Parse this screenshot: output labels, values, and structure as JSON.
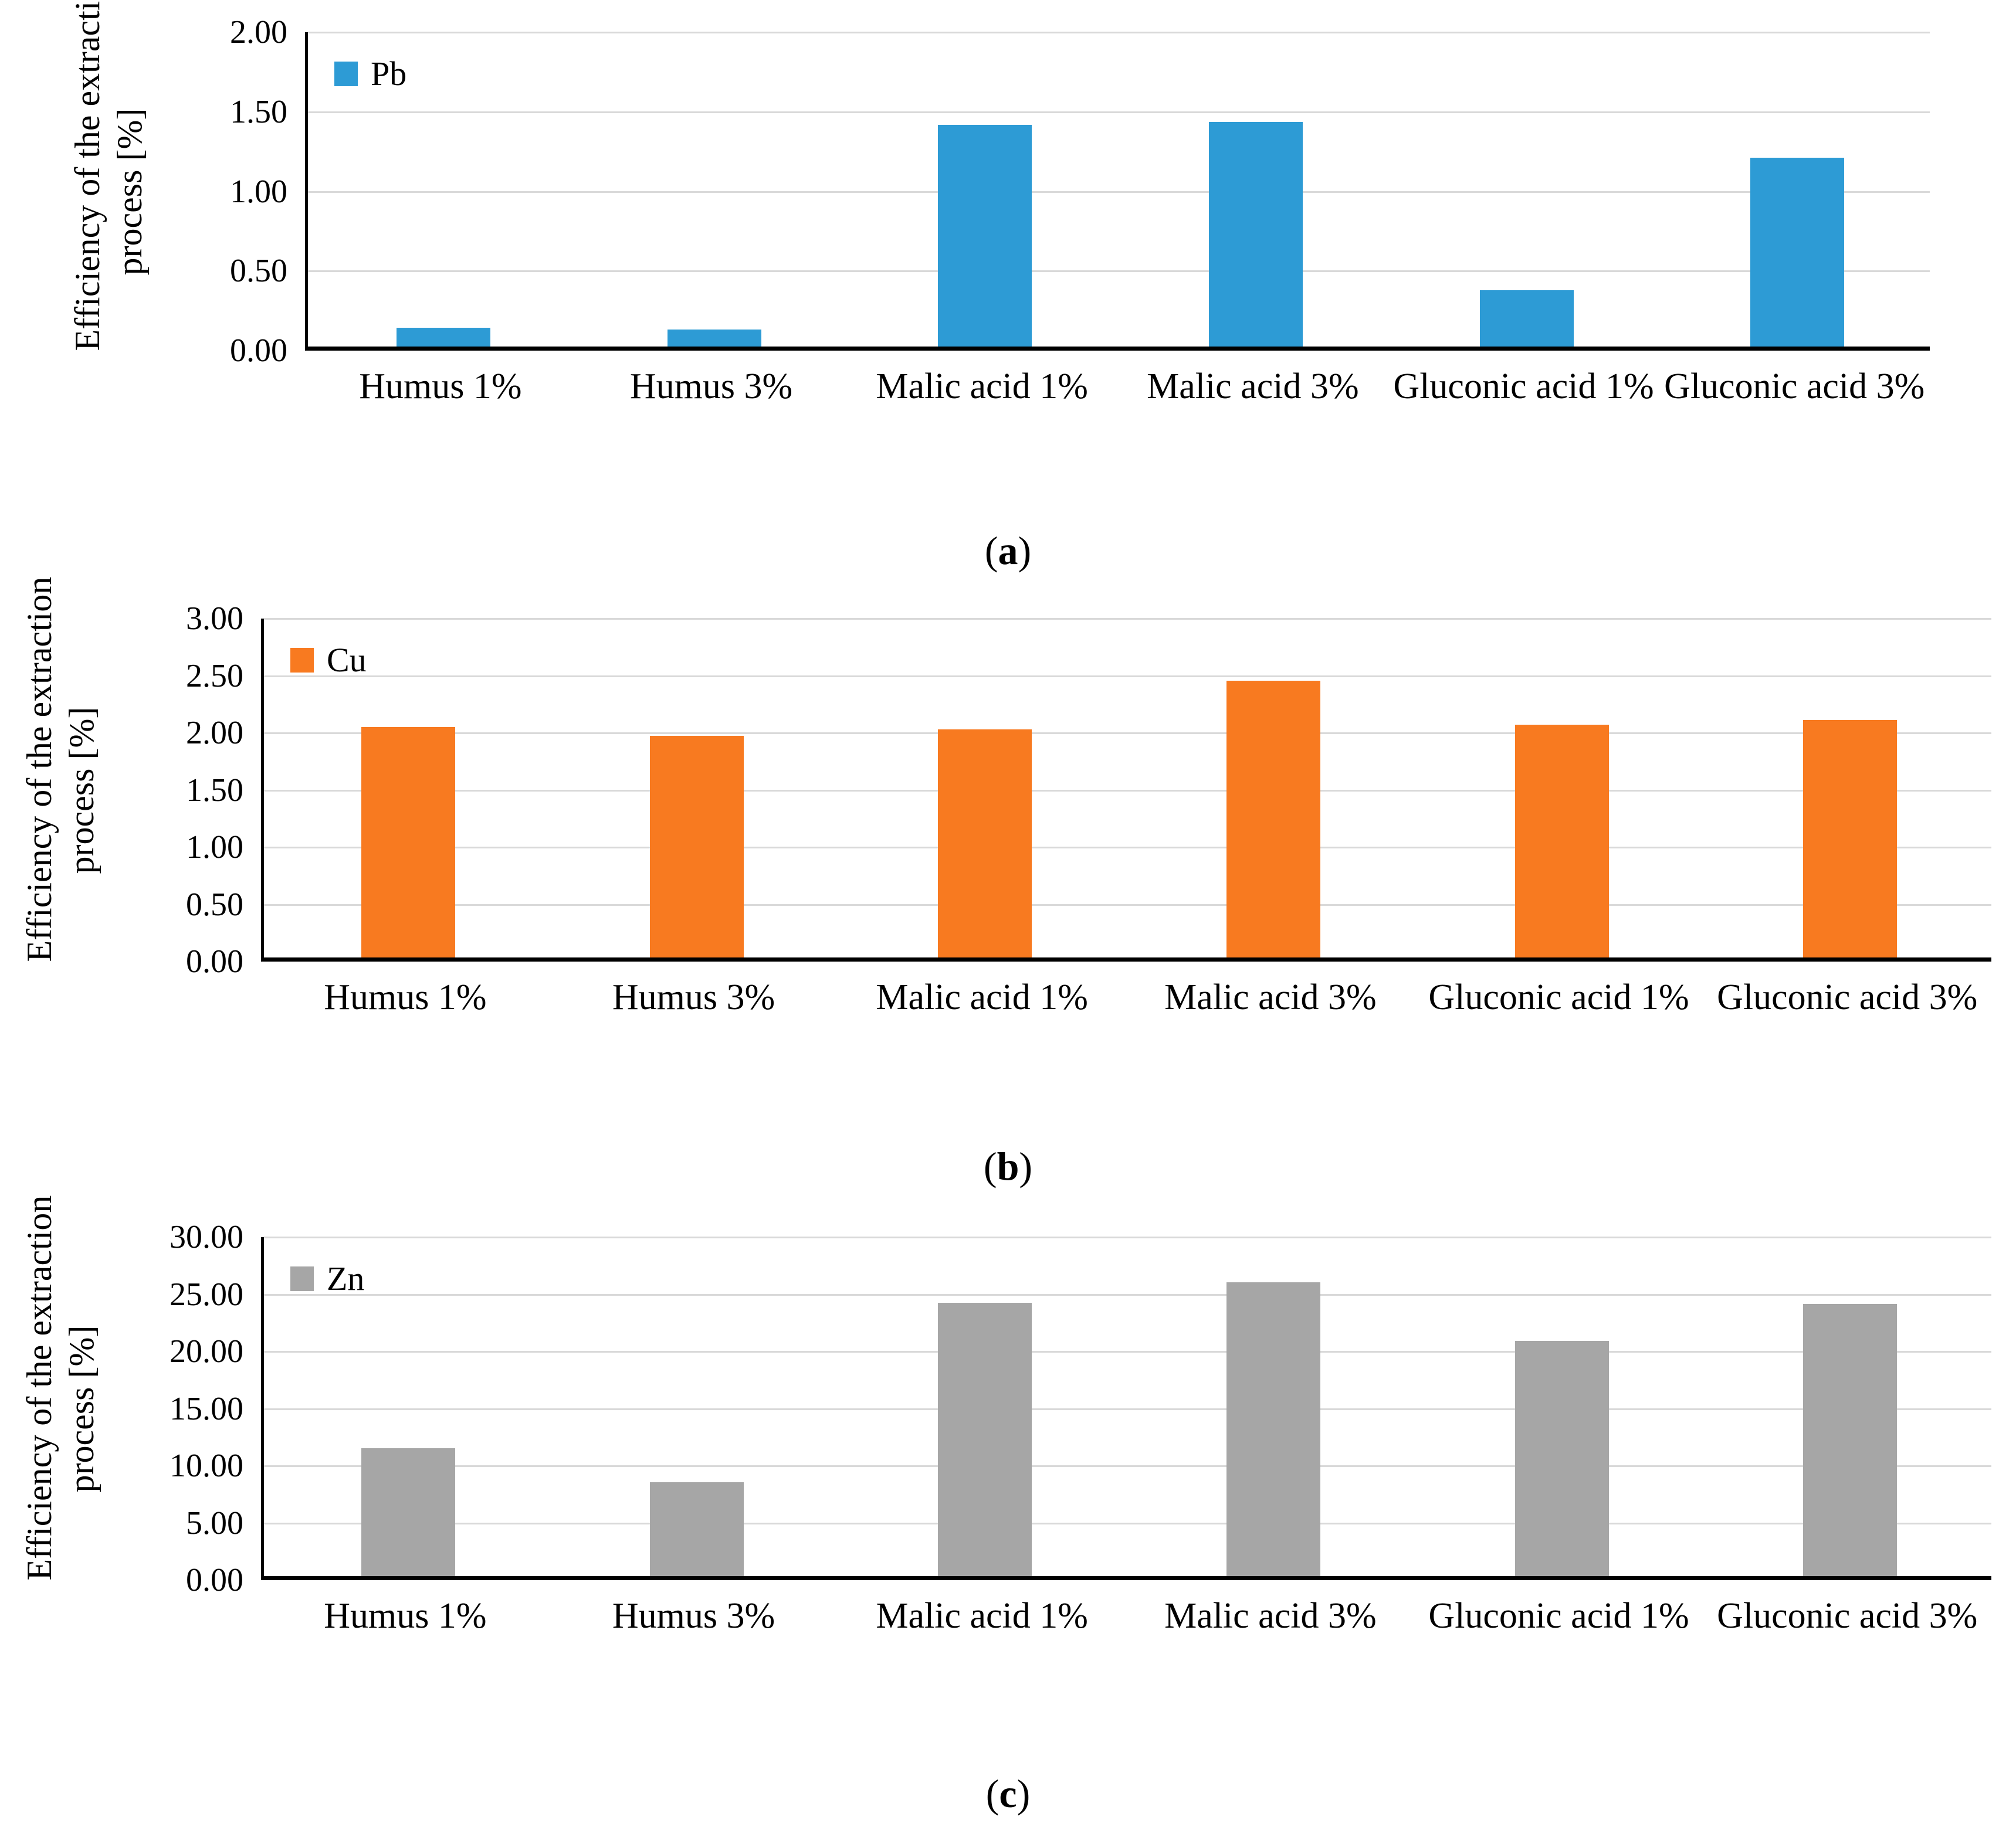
{
  "colors": {
    "grid_color": "#D9D9D9",
    "axis_color": "#000000",
    "text_color": "#000000",
    "pb_blue": "#2D9BD5",
    "cu_orange": "#F87A20",
    "zn_gray": "#A6A6A6"
  },
  "chart_data": [
    {
      "type": "bar",
      "panel": "a",
      "legend": "Pb",
      "legend_position": "top-left",
      "bar_color": "#2D9BD5",
      "categories": [
        "Humus 1%",
        "Humus 3%",
        "Malic acid 1%",
        "Malic acid 3%",
        "Gluconic acid 1%",
        "Gluconic acid 3%"
      ],
      "values": [
        0.12,
        0.11,
        1.41,
        1.43,
        0.36,
        1.2
      ],
      "ylabel_line1": "Efficiency of the extraction",
      "ylabel_line2": "process [%]",
      "ylim": [
        0,
        2.0
      ],
      "ytick_step": 0.5,
      "ytick_labels": [
        "2.00",
        "1.50",
        "1.00",
        "0.50",
        "0.00"
      ],
      "grid": true,
      "caption": {
        "open": "(",
        "letter": "a",
        "close": ")"
      }
    },
    {
      "type": "bar",
      "panel": "b",
      "legend": "Cu",
      "legend_position": "top-left",
      "bar_color": "#F87A20",
      "categories": [
        "Humus 1%",
        "Humus 3%",
        "Malic acid 1%",
        "Malic acid 3%",
        "Gluconic acid 1%",
        "Gluconic acid 3%"
      ],
      "values": [
        2.04,
        1.96,
        2.02,
        2.45,
        2.06,
        2.1
      ],
      "ylabel_line1": "Efficiency of the extraction",
      "ylabel_line2": "process [%]",
      "ylim": [
        0,
        3.0
      ],
      "ytick_step": 0.5,
      "ytick_labels": [
        "3.00",
        "2.50",
        "2.00",
        "1.50",
        "1.00",
        "0.50",
        "0.00"
      ],
      "grid": true,
      "caption": {
        "open": "(",
        "letter": "b",
        "close": ")"
      }
    },
    {
      "type": "bar",
      "panel": "c",
      "legend": "Zn",
      "legend_position": "top-left",
      "bar_color": "#A6A6A6",
      "categories": [
        "Humus 1%",
        "Humus 3%",
        "Malic acid 1%",
        "Malic acid 3%",
        "Gluconic acid 1%",
        "Gluconic acid 3%"
      ],
      "values": [
        11.3,
        8.3,
        24.2,
        26.0,
        20.8,
        24.1
      ],
      "ylabel_line1": "Efficiency of the extraction",
      "ylabel_line2": "process [%]",
      "ylim": [
        0,
        30.0
      ],
      "ytick_step": 5.0,
      "ytick_labels": [
        "30.00",
        "25.00",
        "20.00",
        "15.00",
        "10.00",
        "5.00",
        "0.00"
      ],
      "grid": true,
      "caption": {
        "open": "(",
        "letter": "c",
        "close": ")"
      }
    }
  ]
}
